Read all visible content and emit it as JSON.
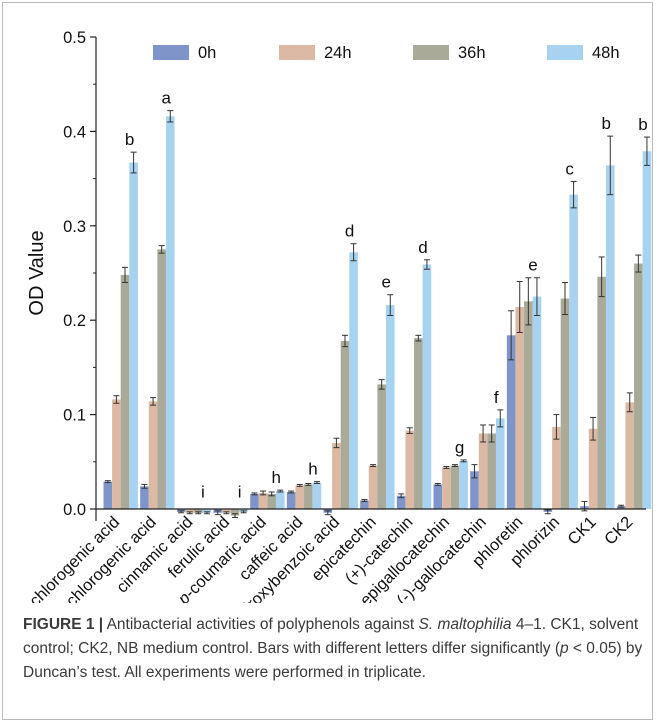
{
  "chart_data": {
    "type": "bar",
    "ylabel": "OD Value",
    "xlabel": "",
    "ylim": [
      0,
      0.5
    ],
    "yticks": [
      "0.0",
      "0.1",
      "0.2",
      "0.3",
      "0.4",
      "0.5"
    ],
    "legend_placement": "top",
    "categories": [
      {
        "pre": "",
        "italic": "",
        "post": "chlorogenic acid"
      },
      {
        "pre": "",
        "italic": "",
        "post": "neochlorogenic acid"
      },
      {
        "pre": "",
        "italic": "",
        "post": "cinnamic acid"
      },
      {
        "pre": "",
        "italic": "",
        "post": "ferulic acid"
      },
      {
        "pre": "",
        "italic": "p",
        "post": "-coumaric acid"
      },
      {
        "pre": "",
        "italic": "",
        "post": "caffeic acid"
      },
      {
        "pre": "",
        "italic": "p",
        "post": "-hydroxybenzoic acid"
      },
      {
        "pre": "",
        "italic": "",
        "post": "epicatechin"
      },
      {
        "pre": "",
        "italic": "",
        "post": "(+)-catechin"
      },
      {
        "pre": "",
        "italic": "",
        "post": "(-)-epigallocatechin"
      },
      {
        "pre": "",
        "italic": "",
        "post": "(-)-gallocatechin"
      },
      {
        "pre": "",
        "italic": "",
        "post": "phloretin"
      },
      {
        "pre": "",
        "italic": "",
        "post": "phlorizin"
      },
      {
        "pre": "",
        "italic": "",
        "post": "CK1"
      },
      {
        "pre": "",
        "italic": "",
        "post": "CK2"
      }
    ],
    "series": [
      {
        "name": "0h",
        "color": "#7f95c9",
        "values": [
          0.029,
          0.024,
          -0.003,
          -0.004,
          0.016,
          0.018,
          -0.004,
          0.009,
          0.014,
          0.026,
          0.04,
          0.184,
          -0.003,
          0.003,
          0.003
        ],
        "errors": [
          0.001,
          0.002,
          0.001,
          0.002,
          0.001,
          0.001,
          0.002,
          0.001,
          0.002,
          0.001,
          0.007,
          0.026,
          0.002,
          0.005,
          0.001
        ]
      },
      {
        "name": "24h",
        "color": "#dcb9a4",
        "values": [
          0.116,
          0.114,
          -0.004,
          -0.004,
          0.017,
          0.025,
          0.07,
          0.046,
          0.083,
          0.044,
          0.08,
          0.214,
          0.087,
          0.085,
          0.113
        ],
        "errors": [
          0.004,
          0.004,
          0.001,
          0.001,
          0.002,
          0.001,
          0.005,
          0.001,
          0.003,
          0.001,
          0.009,
          0.027,
          0.013,
          0.012,
          0.01
        ]
      },
      {
        "name": "36h",
        "color": "#a9ab98",
        "values": [
          0.248,
          0.275,
          -0.004,
          -0.007,
          0.016,
          0.026,
          0.178,
          0.132,
          0.181,
          0.046,
          0.08,
          0.22,
          0.223,
          0.246,
          0.26
        ],
        "errors": [
          0.008,
          0.004,
          0.001,
          0.002,
          0.002,
          0.001,
          0.006,
          0.005,
          0.003,
          0.001,
          0.009,
          0.025,
          0.017,
          0.021,
          0.009
        ]
      },
      {
        "name": "48h",
        "color": "#a7d2f0",
        "values": [
          0.367,
          0.416,
          -0.004,
          -0.003,
          0.019,
          0.028,
          0.272,
          0.216,
          0.259,
          0.051,
          0.096,
          0.225,
          0.333,
          0.364,
          0.379
        ],
        "errors": [
          0.011,
          0.006,
          0.001,
          0.001,
          0.001,
          0.001,
          0.009,
          0.011,
          0.005,
          0.001,
          0.009,
          0.02,
          0.014,
          0.031,
          0.015
        ]
      }
    ],
    "significance_letters": [
      "b",
      "a",
      "i",
      "i",
      "h",
      "h",
      "d",
      "e",
      "d",
      "g",
      "f",
      "e",
      "c",
      "b",
      "b"
    ]
  },
  "caption": {
    "label": "FIGURE 1 |",
    "text_1": " Antibacterial activities of polyphenols against ",
    "organism": "S. maltophilia",
    "text_2": " 4–1. CK1, solvent control; CK2, NB medium control. Bars with different letters differ significantly (",
    "p_symbol": "p",
    "text_3": " < 0.05) by Duncan’s test. All experiments were performed in triplicate."
  }
}
